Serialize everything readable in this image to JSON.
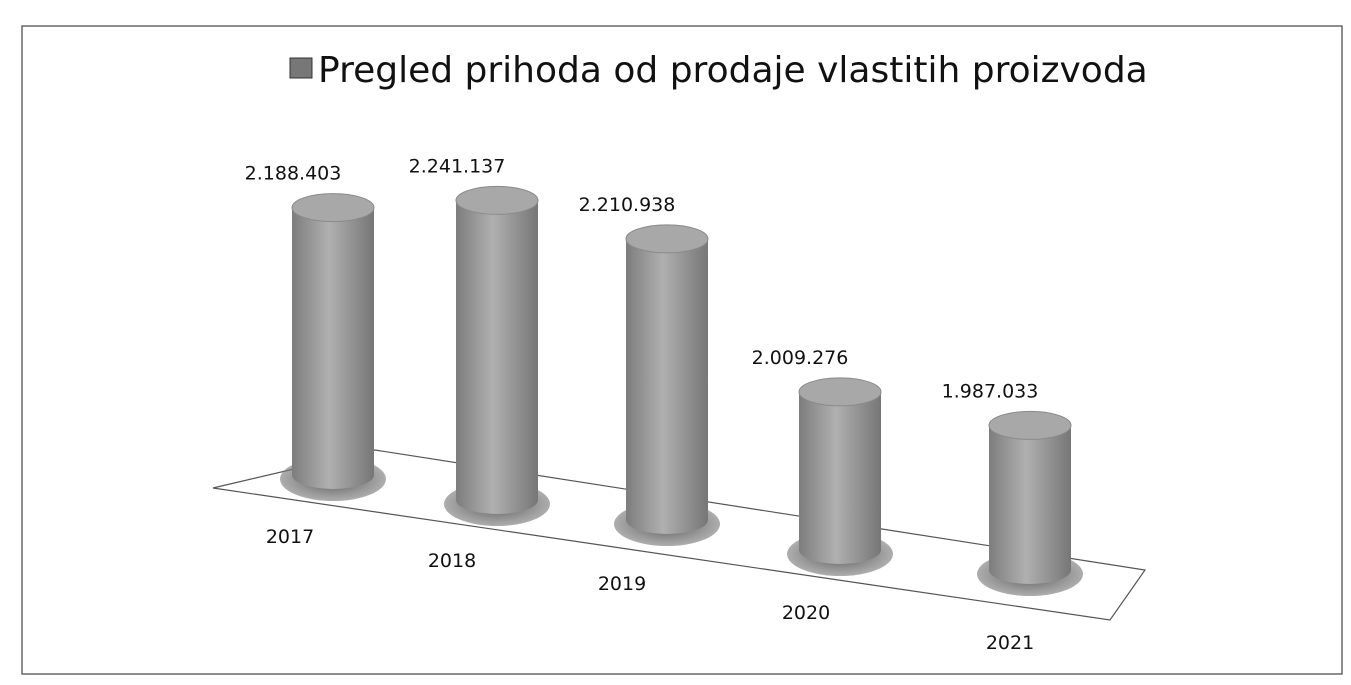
{
  "chart_data": {
    "type": "bar",
    "title": "Pregled prihoda od prodaje vlastitih proizvoda",
    "categories": [
      "2017",
      "2018",
      "2019",
      "2020",
      "2021"
    ],
    "values": [
      2188403,
      2241137,
      2210938,
      2009276,
      1987033
    ],
    "value_labels": [
      "2.188.403",
      "2.241.137",
      "2.210.938",
      "2.009.276",
      "1.987.033"
    ],
    "color": "#9a9a9a",
    "ylim": [
      1750000,
      2250000
    ]
  }
}
